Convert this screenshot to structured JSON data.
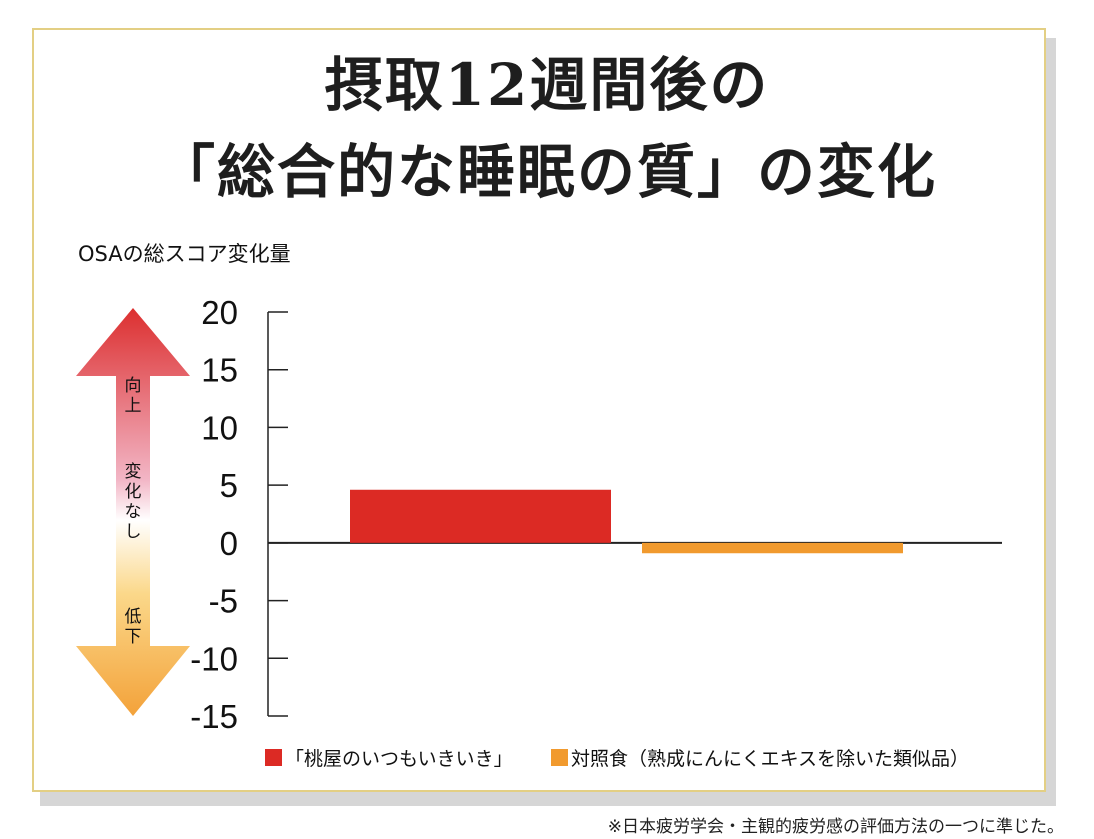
{
  "title_line1": "摂取12週間後の",
  "title_line2": "「総合的な睡眠の質」の変化",
  "chart_data": {
    "type": "bar",
    "ylabel": "OSAの総スコア変化量",
    "yticks": [
      20,
      15,
      10,
      5,
      0,
      -5,
      -10,
      -15
    ],
    "ylim": [
      -15,
      20
    ],
    "categories": [
      "「桃屋のいつもいきいき」",
      "対照食（熟成にんにくエキスを除いた類似品）"
    ],
    "values": [
      4.6,
      -0.9
    ],
    "colors": [
      "#dc2a24",
      "#f19a2e"
    ],
    "legend": [
      {
        "label": "「桃屋のいつもいきいき」",
        "color": "#dc2a24"
      },
      {
        "label": "対照食（熟成にんにくエキスを除いた類似品）",
        "color": "#f19a2e"
      }
    ],
    "legend_position": "bottom",
    "arrow_labels": {
      "up": "向上",
      "middle": "変化なし",
      "down": "低下"
    },
    "grid": false
  },
  "footnote": "※日本疲労学会・主観的疲労感の評価方法の一つに準じた。"
}
